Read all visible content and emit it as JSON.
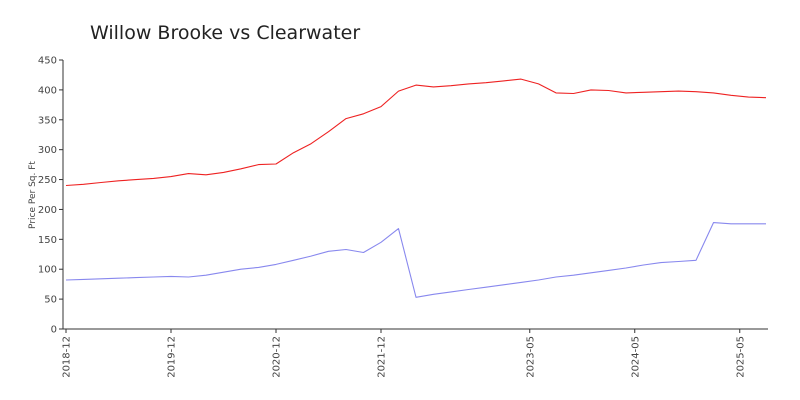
{
  "chart_data": {
    "type": "line",
    "title": "Willow Brooke vs Clearwater",
    "xlabel": "",
    "ylabel": "Price Per Sq. Ft",
    "ylim": [
      0,
      450
    ],
    "yticks": [
      0,
      50,
      100,
      150,
      200,
      250,
      300,
      350,
      400,
      450
    ],
    "x_tick_labels": [
      "2018-12",
      "2019-12",
      "2020-12",
      "2021-12",
      "2023-05",
      "2024-05",
      "2025-05"
    ],
    "x": [
      "2018-12",
      "2019-02",
      "2019-04",
      "2019-06",
      "2019-08",
      "2019-10",
      "2019-12",
      "2020-02",
      "2020-04",
      "2020-06",
      "2020-08",
      "2020-10",
      "2020-12",
      "2021-02",
      "2021-04",
      "2021-06",
      "2021-08",
      "2021-10",
      "2021-12",
      "2022-02",
      "2022-04",
      "2022-06",
      "2022-08",
      "2022-10",
      "2022-12",
      "2023-02",
      "2023-04",
      "2023-06",
      "2023-08",
      "2023-10",
      "2023-12",
      "2024-02",
      "2024-04",
      "2024-06",
      "2024-08",
      "2024-10",
      "2024-12",
      "2025-02",
      "2025-04",
      "2025-06",
      "2025-08"
    ],
    "series": [
      {
        "name": "",
        "color": "#ee2222",
        "values": [
          240,
          242,
          245,
          248,
          250,
          252,
          255,
          260,
          258,
          262,
          268,
          275,
          276,
          295,
          310,
          330,
          352,
          360,
          372,
          398,
          408,
          405,
          407,
          410,
          412,
          415,
          418,
          410,
          395,
          394,
          400,
          399,
          395,
          396,
          397,
          398,
          397,
          395,
          391,
          388,
          387
        ]
      },
      {
        "name": "",
        "color": "#8888ee",
        "values": [
          82,
          83,
          84,
          85,
          86,
          87,
          88,
          87,
          90,
          95,
          100,
          103,
          108,
          115,
          122,
          130,
          133,
          128,
          145,
          168,
          53,
          58,
          62,
          66,
          70,
          74,
          78,
          82,
          87,
          90,
          94,
          98,
          102,
          107,
          111,
          113,
          115,
          178,
          176,
          176,
          176
        ]
      }
    ],
    "grid": false,
    "legend": "none"
  }
}
